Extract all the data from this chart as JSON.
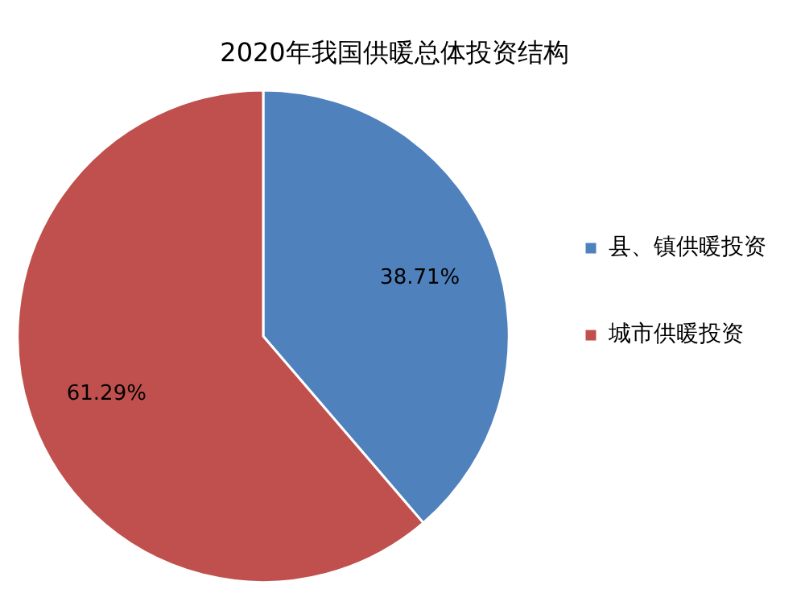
{
  "chart_data": {
    "type": "pie",
    "title": "2020年我国供暖总体投资结构",
    "categories": [
      "县、镇供暖投资",
      "城市供暖投资"
    ],
    "values": [
      38.71,
      61.29
    ],
    "colors": [
      "#4f81bd",
      "#c0504d"
    ],
    "value_labels": [
      "38.71%",
      "61.29%"
    ],
    "legend": "right"
  }
}
